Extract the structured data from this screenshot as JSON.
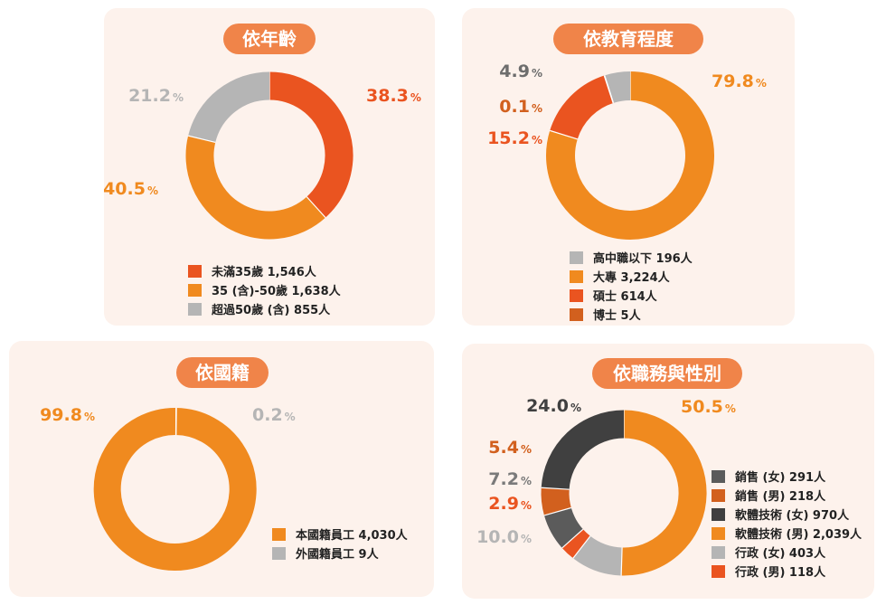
{
  "colors": {
    "card_bg": "#fdf2ec",
    "title_bg": "#f08449",
    "red_orange": "#ea5420",
    "orange": "#f08a1f",
    "gray": "#b5b5b5",
    "dark_orange": "#d2601e",
    "dark_gray": "#5b5b5b",
    "charcoal": "#404040"
  },
  "panels": [
    {
      "title": "依年齡",
      "chart_data": {
        "type": "pie",
        "donut": true,
        "slices": [
          {
            "label": "未滿35歲  1,546人",
            "value": 38.3,
            "pct_text": "38.3",
            "color": "#ea5420",
            "label_color": "#ea5420"
          },
          {
            "label": "35 (含)-50歲  1,638人",
            "value": 40.5,
            "pct_text": "40.5",
            "color": "#f08a1f",
            "label_color": "#f08a1f"
          },
          {
            "label": "超過50歲 (含)  855人",
            "value": 21.2,
            "pct_text": "21.2",
            "color": "#b5b5b5",
            "label_color": "#b5b5b5"
          }
        ]
      }
    },
    {
      "title": "依教育程度",
      "chart_data": {
        "type": "pie",
        "donut": true,
        "slices": [
          {
            "label": "大專 3,224人",
            "value": 79.8,
            "pct_text": "79.8",
            "color": "#f08a1f",
            "label_color": "#f08a1f"
          },
          {
            "label": "碩士 614人",
            "value": 15.2,
            "pct_text": "15.2",
            "color": "#ea5420",
            "label_color": "#ea5420"
          },
          {
            "label": "博士  5人",
            "value": 0.1,
            "pct_text": "0.1",
            "color": "#d2601e",
            "label_color": "#d2601e"
          },
          {
            "label": "高中職以下  196人",
            "value": 4.9,
            "pct_text": "4.9",
            "color": "#b5b5b5",
            "label_color": "#6d6d6d"
          }
        ],
        "legend_order": [
          3,
          0,
          1,
          2
        ]
      }
    },
    {
      "title": "依國籍",
      "chart_data": {
        "type": "pie",
        "donut": true,
        "slices": [
          {
            "label": "外國籍員工  9人",
            "value": 0.2,
            "pct_text": "0.2",
            "color": "#b5b5b5",
            "label_color": "#b5b5b5"
          },
          {
            "label": "本國籍員工  4,030人",
            "value": 99.8,
            "pct_text": "99.8",
            "color": "#f08a1f",
            "label_color": "#f08a1f"
          }
        ],
        "legend_order": [
          1,
          0
        ]
      }
    },
    {
      "title": "依職務與性別",
      "chart_data": {
        "type": "pie",
        "donut": true,
        "slices": [
          {
            "label": "軟體技術 (男)  2,039人",
            "value": 50.5,
            "pct_text": "50.5",
            "color": "#f08a1f",
            "label_color": "#f08a1f"
          },
          {
            "label": "行政 (女)  403人",
            "value": 10.0,
            "pct_text": "10.0",
            "color": "#b5b5b5",
            "label_color": "#b5b5b5"
          },
          {
            "label": "行政 (男)  118人",
            "value": 2.9,
            "pct_text": "2.9",
            "color": "#ea5420",
            "label_color": "#ea5420"
          },
          {
            "label": "銷售 (女)  291人",
            "value": 7.2,
            "pct_text": "7.2",
            "color": "#5b5b5b",
            "label_color": "#7a7a7a"
          },
          {
            "label": "銷售 (男)  218人",
            "value": 5.4,
            "pct_text": "5.4",
            "color": "#d2601e",
            "label_color": "#d2601e"
          },
          {
            "label": "軟體技術 (女)  970人",
            "value": 24.0,
            "pct_text": "24.0",
            "color": "#404040",
            "label_color": "#404040"
          }
        ],
        "legend_order": [
          3,
          4,
          5,
          0,
          1,
          2
        ]
      }
    }
  ],
  "percent_sign": "%"
}
